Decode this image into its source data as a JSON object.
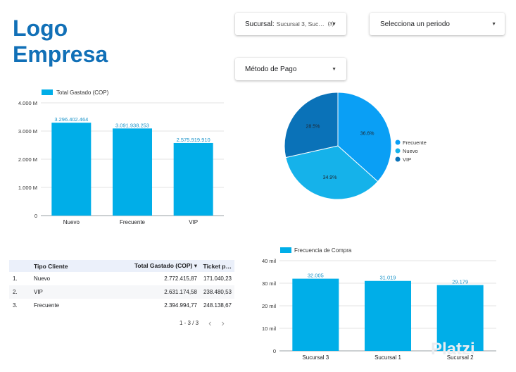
{
  "logo": {
    "line1": "Logo",
    "line2": "Empresa"
  },
  "filters": {
    "sucursal": {
      "label": "Sucursal:",
      "value": "Sucursal 3, Suc…",
      "count": "(3)"
    },
    "periodo": {
      "label": "Selecciona un periodo"
    },
    "metodo": {
      "label": "Método de Pago"
    }
  },
  "colors": {
    "brand": "#1170b7",
    "bar": "#00aee8",
    "pie_frecuente": "#0a9ff5",
    "pie_nuevo": "#15b2ea",
    "pie_vip": "#0a72b8",
    "table_header": "#ebf0fa"
  },
  "chart_data": [
    {
      "type": "bar",
      "legend": "Total Gastado (COP)",
      "categories": [
        "Nuevo",
        "Frecuente",
        "VIP"
      ],
      "values": [
        3296402464,
        3091938253,
        2575919910
      ],
      "value_labels": [
        "3.296.402.464",
        "3.091.938.253",
        "2.575.919.910"
      ],
      "ylim": [
        0,
        4000000000
      ],
      "yticks": [
        0,
        1000000000,
        2000000000,
        3000000000,
        4000000000
      ],
      "ytick_labels": [
        "0",
        "1.000 M",
        "2.000 M",
        "3.000 M",
        "4.000 M"
      ]
    },
    {
      "type": "pie",
      "labels": [
        "Frecuente",
        "Nuevo",
        "VIP"
      ],
      "values": [
        36.6,
        34.9,
        28.5
      ],
      "value_labels": [
        "36.6%",
        "34.9%",
        "28.5%"
      ]
    },
    {
      "type": "bar",
      "legend": "Frecuencia de Compra",
      "categories": [
        "Sucursal 3",
        "Sucursal 1",
        "Sucursal 2"
      ],
      "values": [
        32005,
        31019,
        29179
      ],
      "value_labels": [
        "32.005",
        "31.019",
        "29.179"
      ],
      "ylim": [
        0,
        40000
      ],
      "yticks": [
        0,
        10000,
        20000,
        30000,
        40000
      ],
      "ytick_labels": [
        "0",
        "10 mil",
        "20 mil",
        "30 mil",
        "40 mil"
      ]
    }
  ],
  "table": {
    "headers": [
      "Tipo Cliente",
      "Total Gastado (COP)",
      "Ticket p…"
    ],
    "sort_icon": "▾",
    "rows": [
      {
        "n": "1.",
        "tipo": "Nuevo",
        "total": "2.772.415,87",
        "ticket": "171.040,23"
      },
      {
        "n": "2.",
        "tipo": "VIP",
        "total": "2.631.174,58",
        "ticket": "238.480,53"
      },
      {
        "n": "3.",
        "tipo": "Frecuente",
        "total": "2.394.994,77",
        "ticket": "248.138,67"
      }
    ],
    "pager": {
      "range": "1 - 3 / 3",
      "prev": "‹",
      "next": "›"
    }
  },
  "watermark": "Platzi"
}
